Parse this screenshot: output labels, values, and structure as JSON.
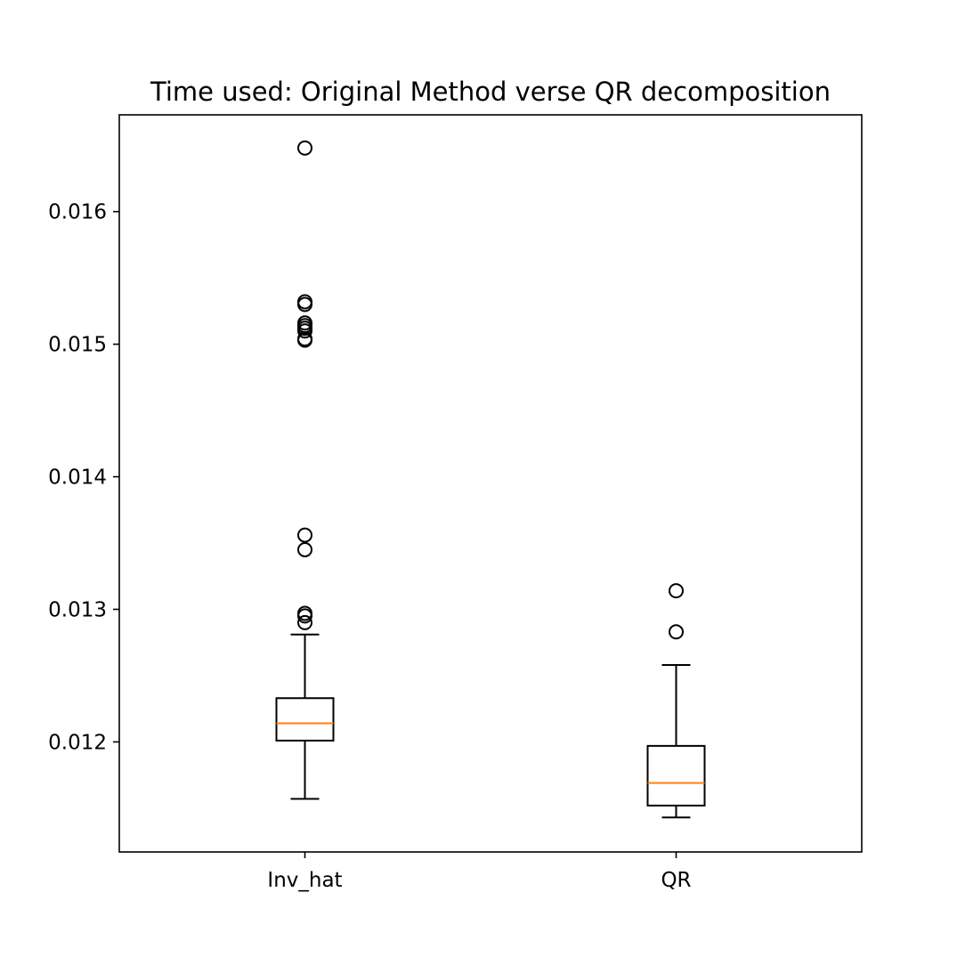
{
  "chart_data": {
    "type": "box",
    "title": "Time used: Original Method verse QR decomposition",
    "xlabel": "",
    "ylabel": "",
    "categories": [
      "Inv_hat",
      "QR"
    ],
    "ylim": [
      0.01117,
      0.01673
    ],
    "yticks": [
      "0.012",
      "0.013",
      "0.014",
      "0.015",
      "0.016"
    ],
    "grid": false,
    "boxes": [
      {
        "category": "Inv_hat",
        "whisker_low": 0.01157,
        "q1": 0.01201,
        "median": 0.01214,
        "q3": 0.01233,
        "whisker_high": 0.01281,
        "outliers": [
          0.01648,
          0.01532,
          0.0153,
          0.01516,
          0.01514,
          0.01512,
          0.0151,
          0.01504,
          0.01503,
          0.01356,
          0.01345,
          0.01297,
          0.01295,
          0.0129
        ]
      },
      {
        "category": "QR",
        "whisker_low": 0.01143,
        "q1": 0.01152,
        "median": 0.01169,
        "q3": 0.01197,
        "whisker_high": 0.01258,
        "outliers": [
          0.01314,
          0.01283
        ]
      }
    ],
    "colors": {
      "box": "#000000",
      "median": "#ff7f0e",
      "background": "#ffffff"
    }
  }
}
